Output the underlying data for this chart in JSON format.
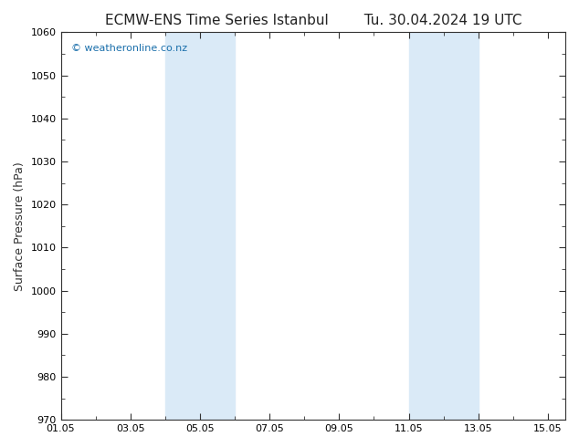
{
  "title": "ECMW-ENS Time Series Istanbul",
  "title_right": "Tu. 30.04.2024 19 UTC",
  "ylabel": "Surface Pressure (hPa)",
  "xlabel": "",
  "ylim": [
    970,
    1060
  ],
  "yticks": [
    970,
    980,
    990,
    1000,
    1010,
    1020,
    1030,
    1040,
    1050,
    1060
  ],
  "xtick_labels": [
    "01.05",
    "03.05",
    "05.05",
    "07.05",
    "09.05",
    "11.05",
    "13.05",
    "15.05"
  ],
  "xtick_positions": [
    1,
    3,
    5,
    7,
    9,
    11,
    13,
    15
  ],
  "xlim": [
    1,
    15.5
  ],
  "shade_bands": [
    {
      "x_start": 4.0,
      "x_end": 6.0
    },
    {
      "x_start": 11.0,
      "x_end": 13.0
    }
  ],
  "shade_color": "#daeaf7",
  "background_color": "#ffffff",
  "watermark_text": "© weatheronline.co.nz",
  "watermark_color": "#1a6fab",
  "watermark_fontsize": 8,
  "title_fontsize": 11,
  "ylabel_fontsize": 9,
  "tick_color": "#333333",
  "tick_fontsize": 8
}
